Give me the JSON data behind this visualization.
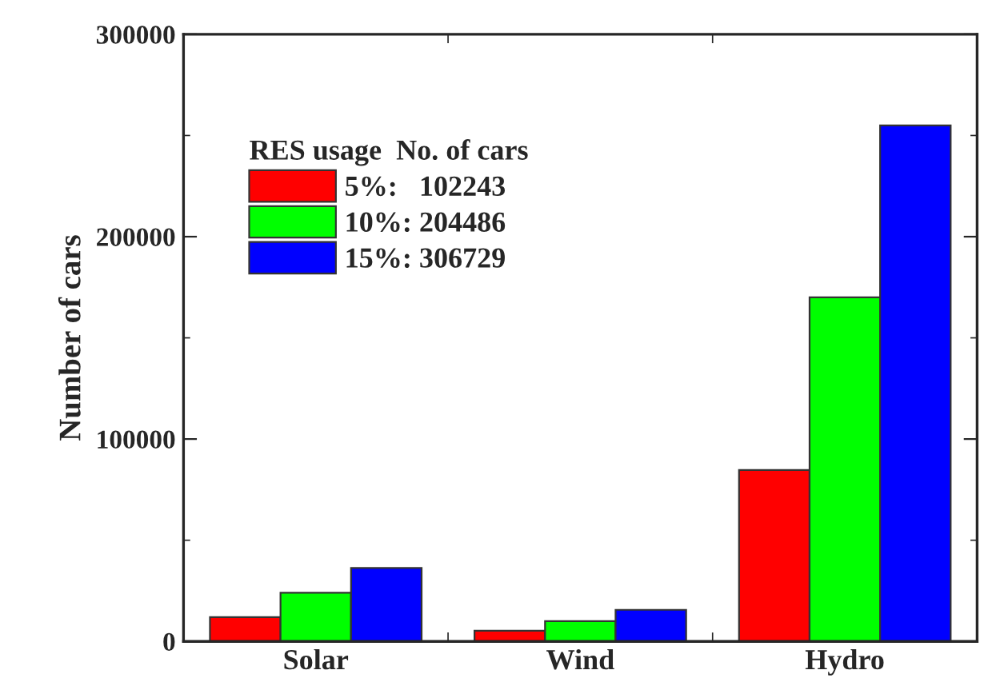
{
  "chart_data": {
    "type": "bar",
    "ylabel": "Number of cars",
    "legend_title": "RES usage  No. of cars",
    "categories": [
      "Solar",
      "Wind",
      "Hydro"
    ],
    "series": [
      {
        "name": "5%:   102243",
        "color": "#ff0000",
        "values": [
          12000,
          5300,
          84700
        ]
      },
      {
        "name": "10%: 204486",
        "color": "#00ff00",
        "values": [
          24000,
          10000,
          170000
        ]
      },
      {
        "name": "15%: 306729",
        "color": "#0000ff",
        "values": [
          36300,
          15600,
          255000
        ]
      }
    ],
    "ylim": [
      0,
      300000
    ],
    "yticks": [
      0,
      {
        "value": 50000,
        "label": null
      },
      100000,
      {
        "value": 150000,
        "label": null
      },
      200000,
      {
        "value": 250000,
        "label": null
      },
      300000
    ],
    "grid": false,
    "legend": "top left"
  }
}
